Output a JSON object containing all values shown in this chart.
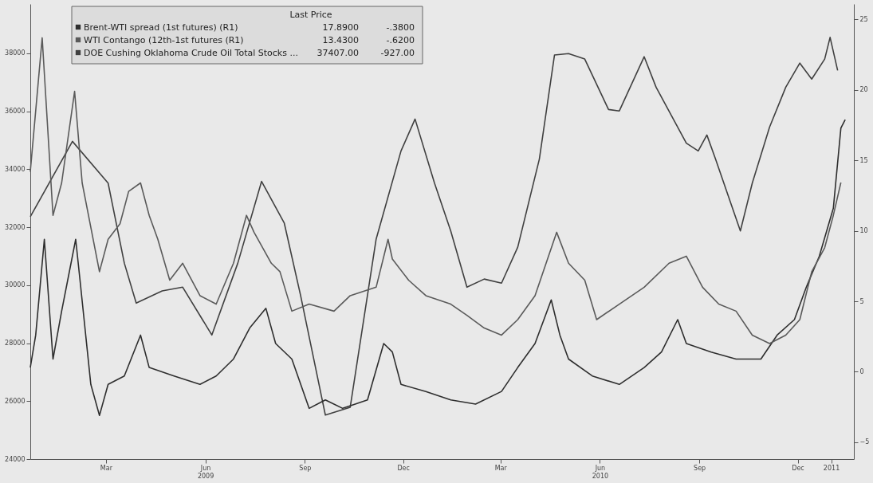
{
  "chart_data": {
    "type": "line",
    "legend_title": "Last Price",
    "legend": "top left",
    "grid": false,
    "annotations": [
      "17.8900",
      "-.3800",
      "13.4300",
      "-.6200",
      "37407.00",
      "-927.00"
    ],
    "xlim": [
      "2008-12-21",
      "2011-01-22"
    ],
    "xticks": [
      {
        "value": "2009-03-01",
        "label": "Mar"
      },
      {
        "value": "2009-06-01",
        "label": "Jun\n2009"
      },
      {
        "value": "2009-09-01",
        "label": "Sep"
      },
      {
        "value": "2009-12-01",
        "label": "Dec"
      },
      {
        "value": "2010-03-01",
        "label": "Mar"
      },
      {
        "value": "2010-06-01",
        "label": "Jun\n2010"
      },
      {
        "value": "2010-09-01",
        "label": "Sep"
      },
      {
        "value": "2010-12-01",
        "label": "Dec"
      },
      {
        "value": "2011-01-01",
        "label": "2011"
      }
    ],
    "ylim": [
      24000,
      39700
    ],
    "yticks": [
      24000,
      26000,
      28000,
      30000,
      32000,
      34000,
      36000,
      38000
    ],
    "y2lim": [
      -6.2,
      26.1
    ],
    "y2ticks": [
      -5,
      0,
      5,
      10,
      15,
      20,
      25
    ],
    "series": [
      {
        "name": "Brent-WTI spread (1st futures)  (R1)",
        "color": "#2e2e2e",
        "axis": "y2",
        "x": [
          "2008-12-21",
          "2008-12-26",
          "2009-01-03",
          "2009-01-11",
          "2009-01-19",
          "2009-02-01",
          "2009-02-05",
          "2009-02-15",
          "2009-02-23",
          "2009-03-03",
          "2009-03-18",
          "2009-04-02",
          "2009-04-10",
          "2009-05-03",
          "2009-05-27",
          "2009-06-11",
          "2009-06-27",
          "2009-07-12",
          "2009-07-27",
          "2009-08-05",
          "2009-08-20",
          "2009-09-05",
          "2009-09-20",
          "2009-10-06",
          "2009-10-29",
          "2009-11-13",
          "2009-11-21",
          "2009-11-29",
          "2009-12-22",
          "2010-01-14",
          "2010-02-06",
          "2010-03-02",
          "2010-03-17",
          "2010-04-02",
          "2010-04-17",
          "2010-04-25",
          "2010-05-03",
          "2010-05-25",
          "2010-06-19",
          "2010-07-12",
          "2010-07-28",
          "2010-08-12",
          "2010-08-20",
          "2010-09-12",
          "2010-10-05",
          "2010-10-28",
          "2010-11-12",
          "2010-11-28",
          "2010-12-09",
          "2010-12-21",
          "2011-01-03",
          "2011-01-10",
          "2011-01-14"
        ],
        "values": [
          0.3,
          2.6,
          9.4,
          0.9,
          4.3,
          9.4,
          6.5,
          -0.9,
          -3.1,
          -0.9,
          -0.3,
          2.6,
          0.3,
          -0.3,
          -0.9,
          -0.3,
          0.9,
          3.1,
          4.5,
          2.0,
          0.9,
          -2.6,
          -2.0,
          -2.6,
          -2.0,
          2.0,
          1.4,
          -0.9,
          -1.4,
          -2.0,
          -2.3,
          -1.4,
          0.3,
          2.0,
          5.1,
          2.6,
          0.9,
          -0.3,
          -0.9,
          0.3,
          1.4,
          3.7,
          2.0,
          1.4,
          0.9,
          0.9,
          2.6,
          3.7,
          6.0,
          8.2,
          11.6,
          17.3,
          17.89
        ]
      },
      {
        "name": "WTI Contango (12th-1st futures  (R1)",
        "color": "#5a5a5a",
        "axis": "y2",
        "x": [
          "2008-12-21",
          "2009-01-01",
          "2009-01-11",
          "2009-01-19",
          "2009-01-31",
          "2009-02-07",
          "2009-02-23",
          "2009-03-03",
          "2009-03-14",
          "2009-03-22",
          "2009-04-02",
          "2009-04-10",
          "2009-04-18",
          "2009-04-29",
          "2009-05-11",
          "2009-05-27",
          "2009-06-11",
          "2009-06-27",
          "2009-07-09",
          "2009-07-16",
          "2009-08-01",
          "2009-08-09",
          "2009-08-20",
          "2009-09-05",
          "2009-09-28",
          "2009-10-13",
          "2009-11-06",
          "2009-11-17",
          "2009-11-21",
          "2009-12-06",
          "2009-12-22",
          "2010-01-14",
          "2010-01-29",
          "2010-02-14",
          "2010-03-02",
          "2010-03-17",
          "2010-04-02",
          "2010-04-22",
          "2010-05-03",
          "2010-05-18",
          "2010-05-29",
          "2010-06-19",
          "2010-07-12",
          "2010-08-04",
          "2010-08-20",
          "2010-09-04",
          "2010-09-19",
          "2010-10-05",
          "2010-10-20",
          "2010-11-05",
          "2010-11-20",
          "2010-12-03",
          "2010-12-14",
          "2010-12-26",
          "2011-01-03",
          "2011-01-10"
        ],
        "values": [
          14.2,
          23.7,
          11.1,
          13.4,
          19.9,
          13.4,
          7.1,
          9.4,
          10.5,
          12.8,
          13.4,
          11.1,
          9.4,
          6.5,
          7.7,
          5.4,
          4.8,
          7.7,
          11.1,
          9.9,
          7.7,
          7.1,
          4.3,
          4.8,
          4.3,
          5.4,
          6.0,
          9.4,
          8.0,
          6.5,
          5.4,
          4.8,
          4.0,
          3.1,
          2.6,
          3.7,
          5.4,
          9.9,
          7.7,
          6.5,
          3.7,
          4.8,
          6.0,
          7.7,
          8.2,
          6.0,
          4.8,
          4.3,
          2.6,
          2.0,
          2.6,
          3.7,
          7.1,
          8.8,
          11.1,
          13.43
        ]
      },
      {
        "name": "DOE Cushing Oklahoma Crude Oil Total Stocks ...",
        "color": "#404040",
        "axis": "y",
        "x": [
          "2008-12-21",
          "2009-01-29",
          "2009-03-03",
          "2009-03-18",
          "2009-03-29",
          "2009-04-22",
          "2009-05-11",
          "2009-06-07",
          "2009-07-01",
          "2009-07-23",
          "2009-08-13",
          "2009-08-28",
          "2009-09-20",
          "2009-10-13",
          "2009-11-06",
          "2009-11-29",
          "2009-12-12",
          "2009-12-30",
          "2010-01-14",
          "2010-01-29",
          "2010-02-14",
          "2010-03-02",
          "2010-03-17",
          "2010-04-06",
          "2010-04-20",
          "2010-05-03",
          "2010-05-18",
          "2010-06-09",
          "2010-06-19",
          "2010-07-12",
          "2010-07-23",
          "2010-08-20",
          "2010-08-31",
          "2010-09-08",
          "2010-09-16",
          "2010-10-09",
          "2010-10-20",
          "2010-11-05",
          "2010-11-20",
          "2010-12-03",
          "2010-12-14",
          "2010-12-26",
          "2010-12-31",
          "2011-01-07"
        ],
        "values": [
          32360,
          34960,
          33520,
          30760,
          29380,
          29800,
          29930,
          28280,
          30760,
          33580,
          32140,
          29660,
          25520,
          25790,
          31590,
          34630,
          35730,
          33520,
          31870,
          29930,
          30210,
          30070,
          31310,
          34350,
          37940,
          37990,
          37800,
          36060,
          36010,
          37880,
          36830,
          34900,
          34630,
          35180,
          34350,
          31870,
          33520,
          35450,
          36830,
          37660,
          37110,
          37800,
          38550,
          37407
        ]
      }
    ]
  }
}
